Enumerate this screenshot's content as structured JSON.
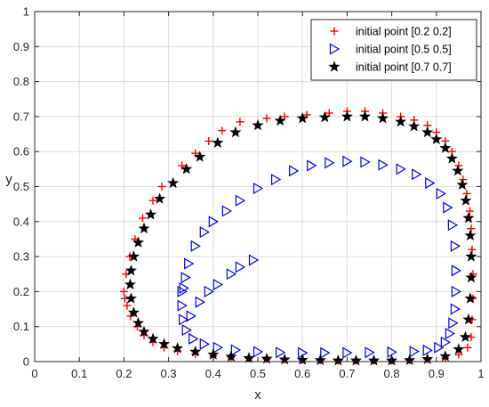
{
  "chart_data": {
    "type": "scatter",
    "title": "",
    "xlabel": "x",
    "ylabel": "y",
    "xlim": [
      0,
      1
    ],
    "ylim": [
      0,
      1
    ],
    "x_ticks": [
      "0",
      "0.1",
      "0.2",
      "0.3",
      "0.4",
      "0.5",
      "0.6",
      "0.7",
      "0.8",
      "0.9",
      "1"
    ],
    "y_ticks": [
      "0",
      "0.1",
      "0.2",
      "0.3",
      "0.4",
      "0.5",
      "0.6",
      "0.7",
      "0.8",
      "0.9",
      "1"
    ],
    "grid": true,
    "legend_position": "top-right",
    "series": [
      {
        "name": "initial point [0.2 0.2]",
        "marker": "plus",
        "color": "#ff0000",
        "points": [
          [
            0.2,
            0.2
          ],
          [
            0.205,
            0.25
          ],
          [
            0.213,
            0.3
          ],
          [
            0.225,
            0.35
          ],
          [
            0.242,
            0.41
          ],
          [
            0.265,
            0.46
          ],
          [
            0.285,
            0.5
          ],
          [
            0.33,
            0.56
          ],
          [
            0.36,
            0.595
          ],
          [
            0.39,
            0.63
          ],
          [
            0.42,
            0.66
          ],
          [
            0.46,
            0.685
          ],
          [
            0.52,
            0.695
          ],
          [
            0.56,
            0.7
          ],
          [
            0.61,
            0.705
          ],
          [
            0.66,
            0.71
          ],
          [
            0.7,
            0.715
          ],
          [
            0.74,
            0.715
          ],
          [
            0.78,
            0.71
          ],
          [
            0.82,
            0.7
          ],
          [
            0.85,
            0.69
          ],
          [
            0.88,
            0.675
          ],
          [
            0.9,
            0.655
          ],
          [
            0.92,
            0.63
          ],
          [
            0.935,
            0.6
          ],
          [
            0.95,
            0.56
          ],
          [
            0.96,
            0.52
          ],
          [
            0.968,
            0.48
          ],
          [
            0.975,
            0.43
          ],
          [
            0.978,
            0.38
          ],
          [
            0.98,
            0.32
          ],
          [
            0.982,
            0.25
          ],
          [
            0.982,
            0.18
          ],
          [
            0.98,
            0.12
          ],
          [
            0.978,
            0.07
          ],
          [
            0.97,
            0.04
          ],
          [
            0.95,
            0.02
          ],
          [
            0.92,
            0.01
          ],
          [
            0.88,
            0.006
          ],
          [
            0.84,
            0.004
          ],
          [
            0.8,
            0.003
          ],
          [
            0.76,
            0.003
          ],
          [
            0.72,
            0.003
          ],
          [
            0.68,
            0.003
          ],
          [
            0.64,
            0.004
          ],
          [
            0.6,
            0.005
          ],
          [
            0.56,
            0.006
          ],
          [
            0.52,
            0.007
          ],
          [
            0.48,
            0.009
          ],
          [
            0.44,
            0.012
          ],
          [
            0.4,
            0.016
          ],
          [
            0.36,
            0.022
          ],
          [
            0.32,
            0.03
          ],
          [
            0.29,
            0.04
          ],
          [
            0.265,
            0.055
          ],
          [
            0.245,
            0.075
          ],
          [
            0.23,
            0.1
          ],
          [
            0.215,
            0.13
          ],
          [
            0.207,
            0.16
          ],
          [
            0.202,
            0.18
          ]
        ]
      },
      {
        "name": "initial point [0.5 0.5]",
        "marker": "triangle-right",
        "color": "#0000ff",
        "points": [
          [
            0.49,
            0.29
          ],
          [
            0.46,
            0.27
          ],
          [
            0.44,
            0.25
          ],
          [
            0.41,
            0.22
          ],
          [
            0.39,
            0.2
          ],
          [
            0.37,
            0.17
          ],
          [
            0.35,
            0.13
          ],
          [
            0.33,
            0.2
          ],
          [
            0.33,
            0.16
          ],
          [
            0.333,
            0.12
          ],
          [
            0.34,
            0.09
          ],
          [
            0.355,
            0.065
          ],
          [
            0.38,
            0.05
          ],
          [
            0.41,
            0.04
          ],
          [
            0.45,
            0.033
          ],
          [
            0.5,
            0.028
          ],
          [
            0.55,
            0.026
          ],
          [
            0.6,
            0.025
          ],
          [
            0.65,
            0.025
          ],
          [
            0.7,
            0.025
          ],
          [
            0.75,
            0.026
          ],
          [
            0.8,
            0.027
          ],
          [
            0.85,
            0.029
          ],
          [
            0.88,
            0.032
          ],
          [
            0.905,
            0.04
          ],
          [
            0.92,
            0.055
          ],
          [
            0.93,
            0.08
          ],
          [
            0.937,
            0.11
          ],
          [
            0.942,
            0.15
          ],
          [
            0.944,
            0.2
          ],
          [
            0.944,
            0.26
          ],
          [
            0.942,
            0.33
          ],
          [
            0.936,
            0.39
          ],
          [
            0.925,
            0.44
          ],
          [
            0.91,
            0.48
          ],
          [
            0.885,
            0.51
          ],
          [
            0.855,
            0.535
          ],
          [
            0.82,
            0.55
          ],
          [
            0.78,
            0.562
          ],
          [
            0.74,
            0.57
          ],
          [
            0.7,
            0.572
          ],
          [
            0.66,
            0.568
          ],
          [
            0.62,
            0.56
          ],
          [
            0.58,
            0.545
          ],
          [
            0.54,
            0.52
          ],
          [
            0.5,
            0.495
          ],
          [
            0.46,
            0.46
          ],
          [
            0.43,
            0.43
          ],
          [
            0.4,
            0.4
          ],
          [
            0.38,
            0.37
          ],
          [
            0.36,
            0.33
          ],
          [
            0.345,
            0.28
          ],
          [
            0.338,
            0.24
          ],
          [
            0.334,
            0.21
          ]
        ]
      },
      {
        "name": "initial point [0.7 0.7]",
        "marker": "star",
        "color": "#000000",
        "points": [
          [
            0.7,
            0.7
          ],
          [
            0.74,
            0.7
          ],
          [
            0.78,
            0.695
          ],
          [
            0.82,
            0.685
          ],
          [
            0.85,
            0.672
          ],
          [
            0.88,
            0.655
          ],
          [
            0.9,
            0.635
          ],
          [
            0.92,
            0.61
          ],
          [
            0.935,
            0.58
          ],
          [
            0.948,
            0.545
          ],
          [
            0.958,
            0.505
          ],
          [
            0.966,
            0.46
          ],
          [
            0.972,
            0.41
          ],
          [
            0.976,
            0.36
          ],
          [
            0.978,
            0.3
          ],
          [
            0.978,
            0.24
          ],
          [
            0.976,
            0.18
          ],
          [
            0.972,
            0.12
          ],
          [
            0.965,
            0.07
          ],
          [
            0.95,
            0.035
          ],
          [
            0.92,
            0.015
          ],
          [
            0.88,
            0.007
          ],
          [
            0.84,
            0.004
          ],
          [
            0.8,
            0.003
          ],
          [
            0.76,
            0.003
          ],
          [
            0.72,
            0.003
          ],
          [
            0.68,
            0.003
          ],
          [
            0.64,
            0.004
          ],
          [
            0.6,
            0.005
          ],
          [
            0.56,
            0.006
          ],
          [
            0.52,
            0.008
          ],
          [
            0.48,
            0.01
          ],
          [
            0.44,
            0.014
          ],
          [
            0.4,
            0.02
          ],
          [
            0.36,
            0.028
          ],
          [
            0.32,
            0.038
          ],
          [
            0.29,
            0.05
          ],
          [
            0.265,
            0.065
          ],
          [
            0.245,
            0.085
          ],
          [
            0.232,
            0.11
          ],
          [
            0.222,
            0.14
          ],
          [
            0.216,
            0.18
          ],
          [
            0.214,
            0.22
          ],
          [
            0.216,
            0.26
          ],
          [
            0.222,
            0.3
          ],
          [
            0.232,
            0.34
          ],
          [
            0.245,
            0.38
          ],
          [
            0.26,
            0.42
          ],
          [
            0.28,
            0.465
          ],
          [
            0.31,
            0.51
          ],
          [
            0.34,
            0.55
          ],
          [
            0.37,
            0.585
          ],
          [
            0.41,
            0.625
          ],
          [
            0.45,
            0.655
          ],
          [
            0.5,
            0.675
          ],
          [
            0.55,
            0.688
          ],
          [
            0.6,
            0.695
          ],
          [
            0.65,
            0.698
          ]
        ]
      }
    ]
  }
}
